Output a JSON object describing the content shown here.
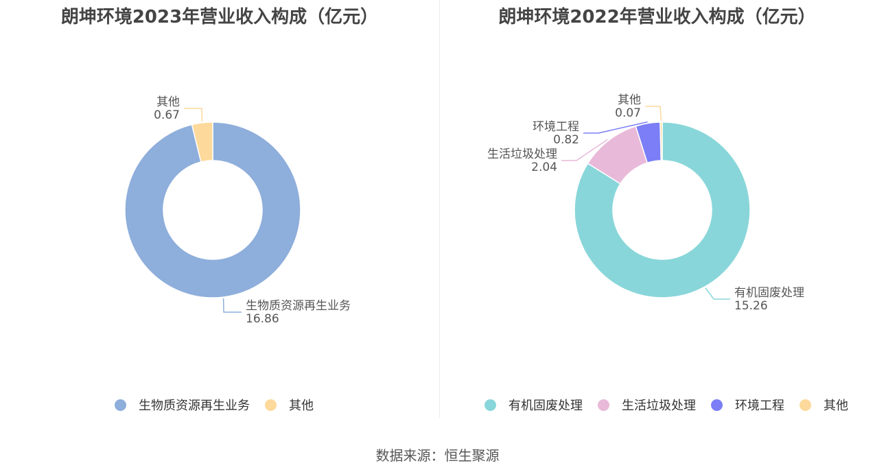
{
  "colors": {
    "bio": "#8eaedb",
    "other": "#fdd99b",
    "organic": "#89d6da",
    "living": "#e8b9d9",
    "env": "#7b7ef6",
    "divider": "#ececec"
  },
  "chart_data": [
    {
      "type": "pie",
      "donut": true,
      "title": "朗坤环境2023年营业收入构成（亿元）",
      "legend_position": "bottom",
      "slices": [
        {
          "name": "生物质资源再生业务",
          "value": 16.86,
          "value_label": "16.86",
          "color": "#8eaedb"
        },
        {
          "name": "其他",
          "value": 0.67,
          "value_label": "0.67",
          "color": "#fdd99b"
        }
      ]
    },
    {
      "type": "pie",
      "donut": true,
      "title": "朗坤环境2022年营业收入构成（亿元）",
      "legend_position": "bottom",
      "slices": [
        {
          "name": "有机固废处理",
          "value": 15.26,
          "value_label": "15.26",
          "color": "#89d6da"
        },
        {
          "name": "生活垃圾处理",
          "value": 2.04,
          "value_label": "2.04",
          "color": "#e8b9d9"
        },
        {
          "name": "环境工程",
          "value": 0.82,
          "value_label": "0.82",
          "color": "#7b7ef6"
        },
        {
          "name": "其他",
          "value": 0.07,
          "value_label": "0.07",
          "color": "#fdd99b"
        }
      ]
    }
  ],
  "source": "数据来源：恒生聚源"
}
